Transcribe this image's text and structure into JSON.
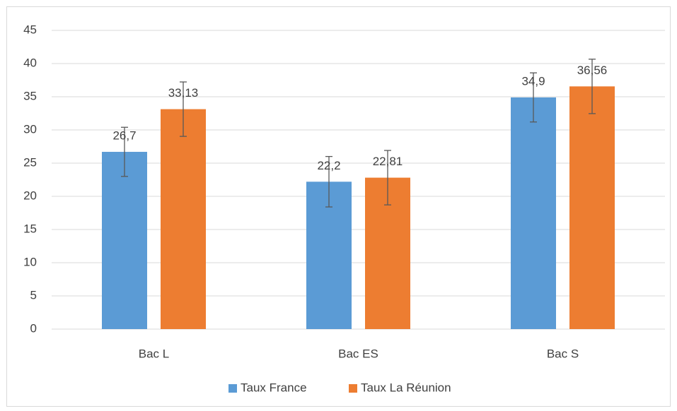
{
  "chart_data": {
    "type": "bar",
    "categories": [
      "Bac L",
      "Bac ES",
      "Bac S"
    ],
    "series": [
      {
        "name": "Taux France",
        "color": "#5b9bd5",
        "values": [
          26.7,
          22.2,
          34.9
        ],
        "value_labels": [
          "26,7",
          "22,2",
          "34,9"
        ],
        "errors": [
          3.7,
          3.8,
          3.7
        ]
      },
      {
        "name": "Taux La Réunion",
        "color": "#ed7d31",
        "values": [
          33.13,
          22.81,
          36.56
        ],
        "value_labels": [
          "33,13",
          "22,81",
          "36,56"
        ],
        "errors": [
          4.1,
          4.1,
          4.1
        ]
      }
    ],
    "ylim": [
      0,
      45
    ],
    "yticks": [
      0,
      5,
      10,
      15,
      20,
      25,
      30,
      35,
      40,
      45
    ],
    "grid": true,
    "legend": "bottom"
  }
}
